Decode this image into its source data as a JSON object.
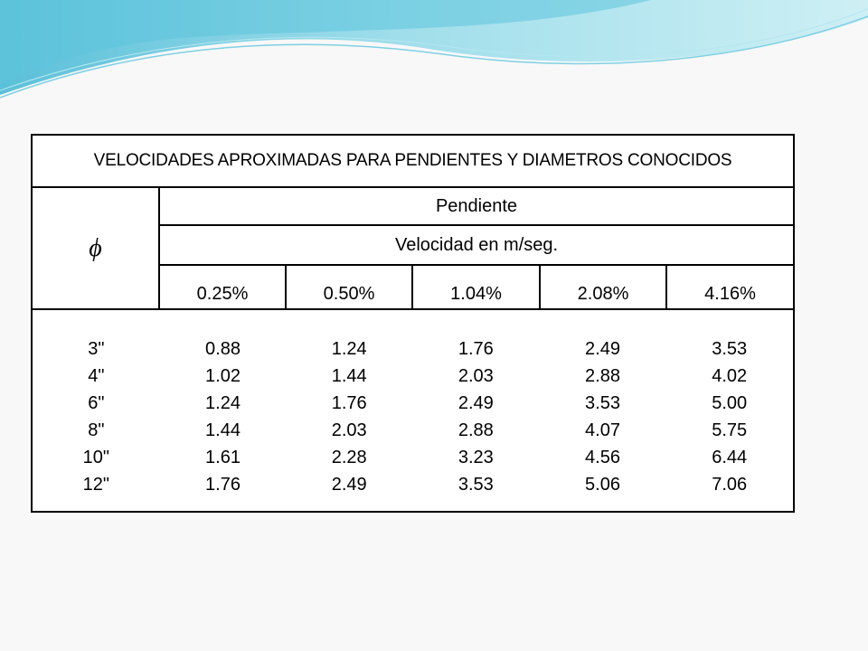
{
  "table": {
    "title": "VELOCIDADES APROXIMADAS PARA PENDIENTES Y DIAMETROS CONOCIDOS",
    "diameter_symbol": "ϕ",
    "slope_header": "Pendiente",
    "velocity_header": "Velocidad en m/seg.",
    "slopes": [
      "0.25%",
      "0.50%",
      "1.04%",
      "2.08%",
      "4.16%"
    ],
    "diameters": [
      "3\"",
      "4\"",
      "6\"",
      "8\"",
      "10\"",
      "12\""
    ],
    "velocities": [
      [
        "0.88",
        "1.02",
        "1.24",
        "1.44",
        "1.61",
        "1.76"
      ],
      [
        "1.24",
        "1.44",
        "1.76",
        "2.03",
        "2.28",
        "2.49"
      ],
      [
        "1.76",
        "2.03",
        "2.49",
        "2.88",
        "3.23",
        "3.53"
      ],
      [
        "2.49",
        "2.88",
        "3.53",
        "4.07",
        "4.56",
        "5.06"
      ],
      [
        "3.53",
        "4.02",
        "5.00",
        "5.75",
        "6.44",
        "7.06"
      ]
    ]
  },
  "colors": {
    "wave_light": "#c6eef4",
    "wave_mid": "#8fd9e8",
    "wave_dark": "#3fb6d3",
    "background": "#f8f8f8"
  }
}
